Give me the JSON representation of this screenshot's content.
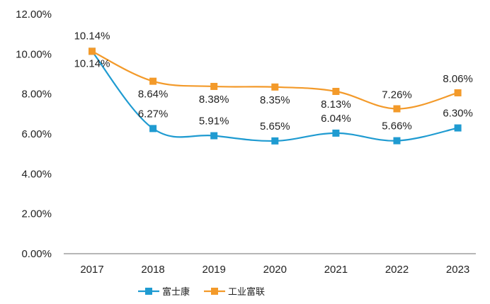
{
  "chart_data": {
    "type": "line",
    "title": "",
    "xlabel": "",
    "ylabel": "",
    "categories": [
      "2017",
      "2018",
      "2019",
      "2020",
      "2021",
      "2022",
      "2023"
    ],
    "ylim": [
      0,
      12
    ],
    "yticks": [
      0,
      2,
      4,
      6,
      8,
      10,
      12
    ],
    "ytick_labels": [
      "0.00%",
      "2.00%",
      "4.00%",
      "6.00%",
      "8.00%",
      "10.00%",
      "12.00%"
    ],
    "grid": false,
    "legend_position": "bottom-center",
    "series": [
      {
        "name": "富士康",
        "color": "#1f9bd1",
        "marker": "square",
        "values": [
          10.14,
          6.27,
          5.91,
          5.65,
          6.04,
          5.66,
          6.3
        ],
        "labels": [
          "10.14%",
          "6.27%",
          "5.91%",
          "5.65%",
          "6.04%",
          "5.66%",
          "6.30%"
        ]
      },
      {
        "name": "工业富联",
        "color": "#f39a2a",
        "marker": "square",
        "values": [
          10.14,
          8.64,
          8.38,
          8.35,
          8.13,
          7.26,
          8.06
        ],
        "labels": [
          "10.14%",
          "8.64%",
          "8.38%",
          "8.35%",
          "8.13%",
          "7.26%",
          "8.06%"
        ]
      }
    ]
  }
}
